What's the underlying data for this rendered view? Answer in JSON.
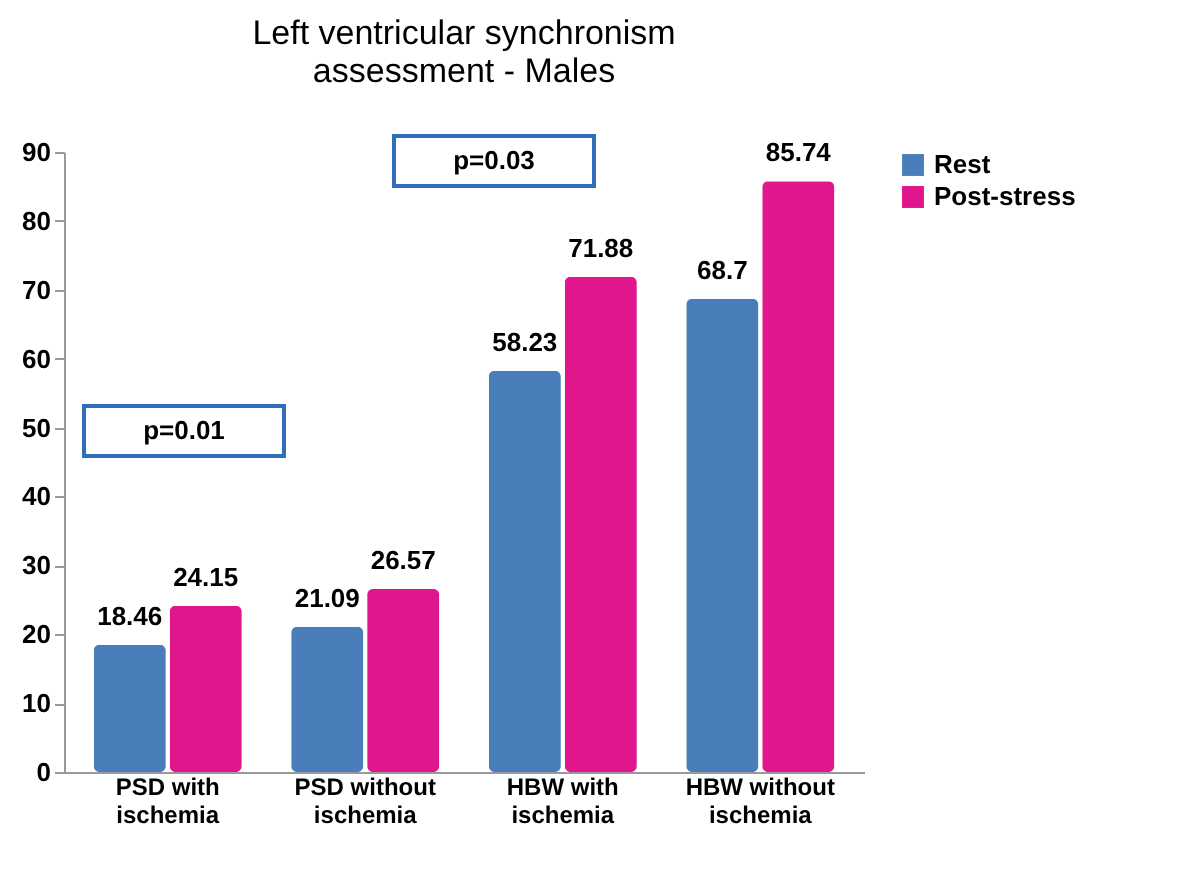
{
  "chart_data": {
    "type": "bar",
    "title": "Left ventricular synchronism\nassessment - Males",
    "categories": [
      "PSD with ischemia",
      "PSD without ischemia",
      "HBW with ischemia",
      "HBW without ischemia"
    ],
    "series": [
      {
        "name": "Rest",
        "color": "#4a7ebb",
        "values": [
          18.46,
          21.09,
          58.23,
          68.7
        ]
      },
      {
        "name": "Post-stress",
        "color": "#e0168c",
        "values": [
          24.15,
          26.57,
          71.88,
          85.74
        ]
      }
    ],
    "ylim": [
      0,
      90
    ],
    "yticks": [
      0,
      10,
      20,
      30,
      40,
      50,
      60,
      70,
      80,
      90
    ],
    "grid": false,
    "legend": "right",
    "data_labels": true,
    "annotations": [
      "p=0.01",
      "p=0.03"
    ]
  }
}
